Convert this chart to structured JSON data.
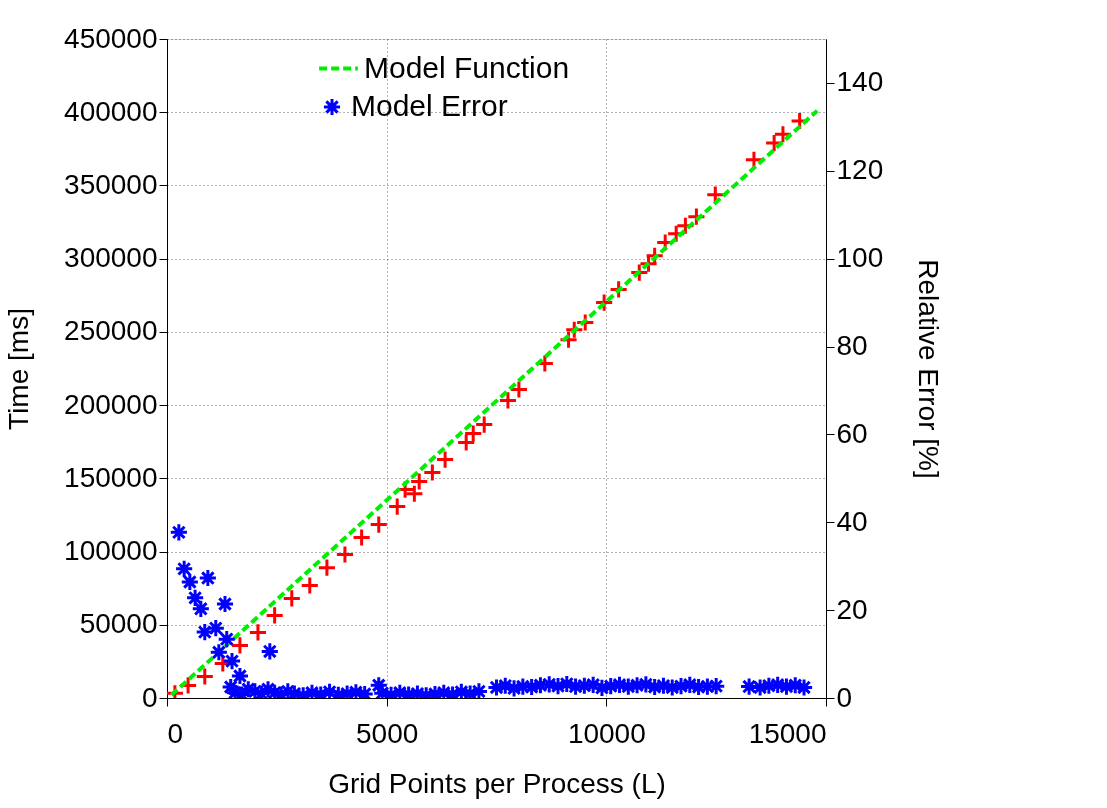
{
  "chart_data": {
    "type": "scatter",
    "xlabel": "Grid Points per Process (L)",
    "ylabel": "Time [ms]",
    "y2label": "Relative Error [%]",
    "xlim": [
      0,
      15000
    ],
    "xticks": [
      0,
      5000,
      10000,
      15000
    ],
    "ylim": [
      0,
      450000
    ],
    "yticks": [
      0,
      50000,
      100000,
      150000,
      200000,
      250000,
      300000,
      350000,
      400000,
      450000
    ],
    "y2lim": [
      0,
      150
    ],
    "y2ticks": [
      0,
      20,
      40,
      60,
      80,
      100,
      120,
      140
    ],
    "grid": true,
    "legend": "top",
    "series": [
      {
        "color": "#ff0000",
        "x": [
          180,
          480,
          860,
          1270,
          1660,
          2070,
          2450,
          2840,
          3250,
          3640,
          4050,
          4430,
          4820,
          5240,
          5420,
          5630,
          5740,
          6040,
          6330,
          6810,
          6970,
          7220,
          7760,
          8010,
          8600,
          9140,
          9270,
          9520,
          9950,
          10280,
          10750,
          10960,
          11100,
          11340,
          11590,
          11800,
          12050,
          12480,
          13360,
          13820,
          14020,
          14400
        ],
        "values": [
          3200,
          8600,
          14700,
          23600,
          35900,
          44800,
          56400,
          68000,
          76800,
          89000,
          98000,
          109600,
          118400,
          130700,
          142300,
          139500,
          147800,
          154000,
          162800,
          174500,
          180600,
          186700,
          203200,
          210700,
          228400,
          244700,
          251500,
          256400,
          270000,
          279000,
          290500,
          296500,
          302000,
          311000,
          317000,
          322500,
          328700,
          343700,
          367500,
          379000,
          385000,
          394000
        ]
      },
      {
        "type": "line",
        "name": "Model Function",
        "color": "#00ee00",
        "line_style": "dashed",
        "x": [
          100,
          14800
        ],
        "values": [
          2000,
          401000
        ]
      },
      {
        "name": "Model Error",
        "axis": "y2",
        "marker": "cross",
        "color": "#0000ff",
        "x": [
          270,
          390,
          520,
          640,
          770,
          860,
          930,
          1110,
          1180,
          1320,
          1360,
          1480,
          1660,
          2340,
          1450,
          1550,
          1700,
          1850,
          2000,
          2150,
          2300,
          2450,
          2600,
          2750,
          2900,
          3100,
          3300,
          3500,
          3700,
          3900,
          4100,
          4300,
          4500,
          4820,
          4900,
          5100,
          5300,
          5500,
          5700,
          5900,
          6100,
          6300,
          6500,
          6700,
          6900,
          7100,
          7500,
          7700,
          7900,
          8100,
          8300,
          8500,
          8700,
          8900,
          9100,
          9300,
          9500,
          9700,
          9900,
          10100,
          10300,
          10500,
          10700,
          10900,
          11100,
          11300,
          11500,
          11700,
          11900,
          12100,
          12300,
          12500,
          13250,
          13500,
          13700,
          13900,
          14100,
          14300,
          14500
        ],
        "values": [
          37.7,
          29.4,
          26.4,
          22.8,
          20.3,
          15,
          27.3,
          15.9,
          10.4,
          21.4,
          13.4,
          8.4,
          5,
          10.6,
          2.5,
          1.2,
          0.8,
          2,
          1.5,
          1,
          2,
          1.2,
          0.8,
          1.5,
          1,
          0.6,
          1.2,
          0.8,
          1.4,
          0.7,
          1,
          1.3,
          0.9,
          2.9,
          1.1,
          0.7,
          1.2,
          0.8,
          1,
          0.6,
          0.9,
          1.2,
          0.8,
          1.4,
          1,
          1.5,
          2.4,
          2.8,
          2.2,
          2.6,
          2.5,
          2.9,
          3.1,
          2.7,
          3.2,
          2.6,
          2.8,
          3,
          2.3,
          2.7,
          3,
          2.6,
          2.9,
          3.1,
          2.5,
          2.8,
          2.4,
          2.7,
          3,
          2.5,
          2.6,
          2.7,
          2.6,
          2.4,
          2.8,
          3,
          2.6,
          2.9,
          2.4
        ]
      }
    ]
  }
}
